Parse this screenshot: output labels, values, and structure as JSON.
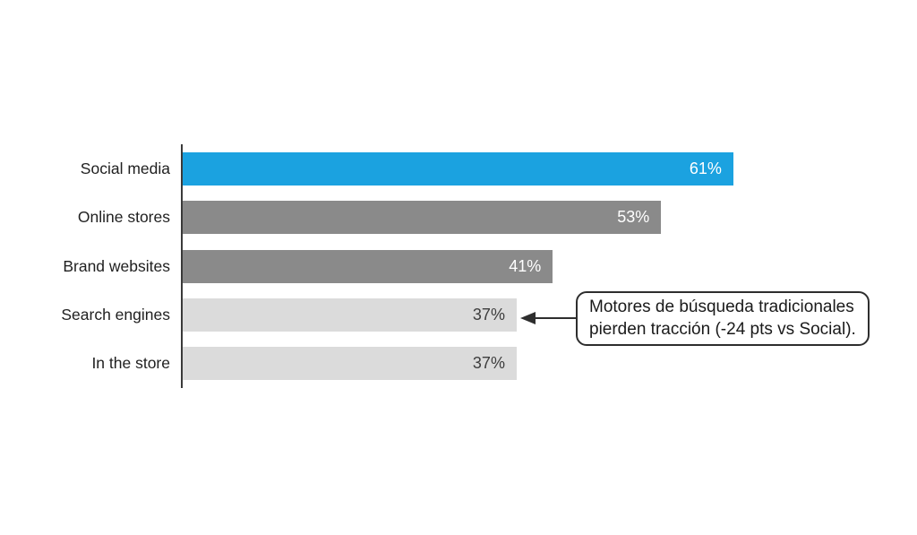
{
  "chart_data": {
    "type": "bar",
    "orientation": "horizontal",
    "title": "",
    "xlabel": "",
    "ylabel": "",
    "xlim": [
      0,
      61
    ],
    "grid": false,
    "legend": false,
    "categories": [
      "Social media",
      "Online stores",
      "Brand websites",
      "Search engines",
      "In the store"
    ],
    "values": [
      61,
      53,
      41,
      37,
      37
    ],
    "value_labels": [
      "61%",
      "53%",
      "41%",
      "37%",
      "37%"
    ],
    "bar_colors": [
      "#1BA2E0",
      "#8A8A8A",
      "#8A8A8A",
      "#DBDBDB",
      "#DBDBDB"
    ],
    "value_label_colors": [
      "#FFFFFF",
      "#FFFFFF",
      "#FFFFFF",
      "#3D3D3D",
      "#3D3D3D"
    ]
  },
  "annotation": {
    "line1": "Motores de búsqueda tradicionales",
    "line2": "pierden tracción (-24 pts vs Social).",
    "target_category": "Search engines",
    "target_value_label": "37%"
  },
  "colors": {
    "accent_blue": "#1BA2E0",
    "bar_gray": "#8A8A8A",
    "bar_light_gray": "#DBDBDB",
    "axis": "#3A3A3A",
    "label_text": "#1F1F1F",
    "annotation_border": "#2E2E2E",
    "background": "#FFFFFF"
  }
}
